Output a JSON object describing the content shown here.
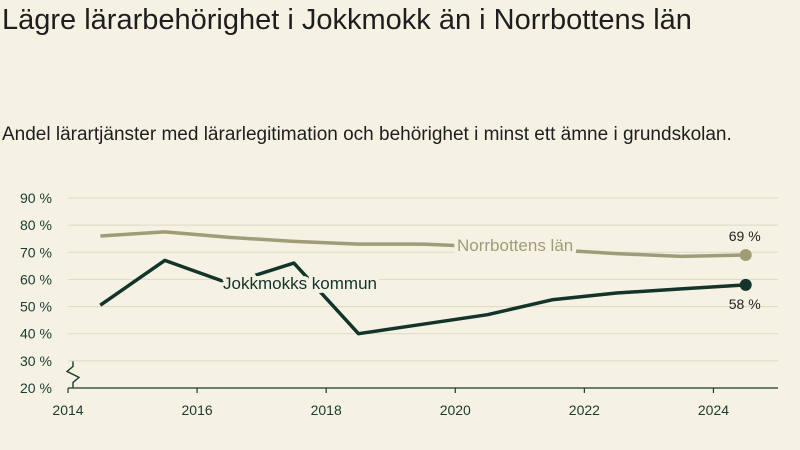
{
  "title": "Lägre lärarbehörighet i Jokkmokk än i Norrbottens län",
  "subtitle": "Andel lärartjänster med lärarlegitimation och behörighet i minst ett ämne i grundskolan.",
  "chart_data": {
    "type": "line",
    "x": [
      2014.5,
      2015.5,
      2016.5,
      2017.5,
      2018.5,
      2019.5,
      2020.5,
      2021.5,
      2022.5,
      2023.5,
      2024.5
    ],
    "xlim": [
      2014,
      2025
    ],
    "xticks": [
      2014,
      2016,
      2018,
      2020,
      2022,
      2024
    ],
    "xtick_labels": [
      "2014",
      "2016",
      "2018",
      "2020",
      "2022",
      "2024"
    ],
    "ylim": [
      20,
      90
    ],
    "yticks": [
      20,
      30,
      40,
      50,
      60,
      70,
      80,
      90
    ],
    "ytick_labels": [
      "20 %",
      "30 %",
      "40 %",
      "50 %",
      "60 %",
      "70 %",
      "80 %",
      "90 %"
    ],
    "axis_break": true,
    "grid": true,
    "series": [
      {
        "name": "Norrbottens län",
        "color": "#a09c78",
        "values": [
          76,
          77.5,
          75.5,
          74,
          73,
          73,
          72,
          71,
          69.5,
          68.5,
          69
        ],
        "end_label": "69 %"
      },
      {
        "name": "Jokkmokks kommun",
        "color": "#13342a",
        "values": [
          50.5,
          67,
          58.5,
          66,
          40,
          43.5,
          47,
          52.5,
          55,
          56.5,
          58
        ],
        "end_label": "58 %"
      }
    ]
  }
}
